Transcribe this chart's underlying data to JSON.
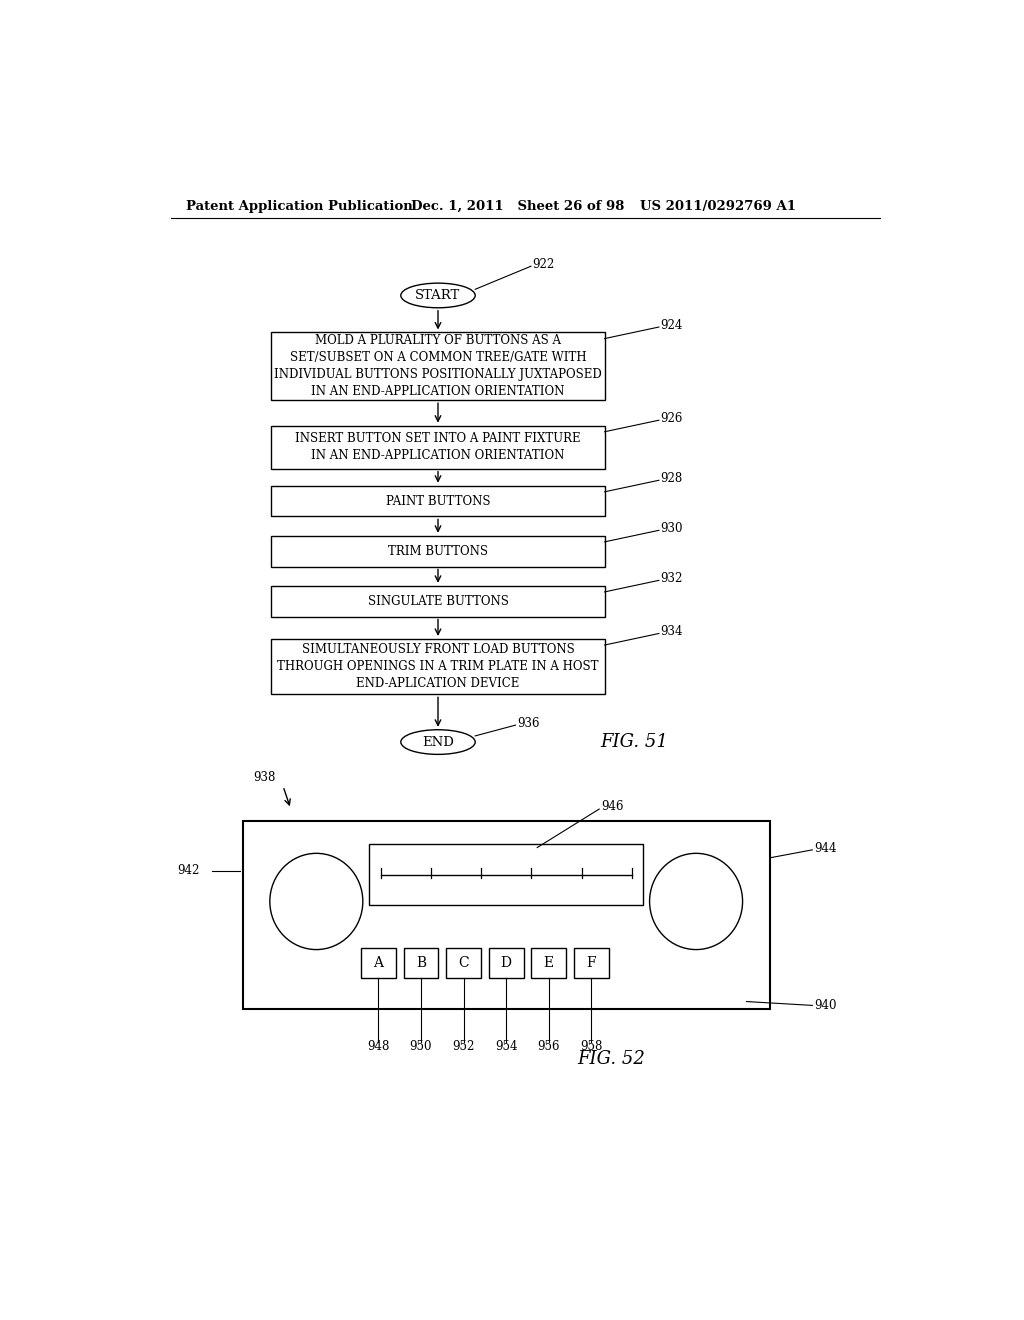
{
  "bg_color": "#ffffff",
  "header_left": "Patent Application Publication",
  "header_mid": "Dec. 1, 2011   Sheet 26 of 98",
  "header_right": "US 2011/0292769 A1",
  "flowchart": {
    "start_label": "START",
    "start_ref": "922",
    "boxes": [
      {
        "ref": "924",
        "text": "MOLD A PLURALITY OF BUTTONS AS A\nSET/SUBSET ON A COMMON TREE/GATE WITH\nINDIVIDUAL BUTTONS POSITIONALLY JUXTAPOSED\nIN AN END-APPLICATION ORIENTATION"
      },
      {
        "ref": "926",
        "text": "INSERT BUTTON SET INTO A PAINT FIXTURE\nIN AN END-APPLICATION ORIENTATION"
      },
      {
        "ref": "928",
        "text": "PAINT BUTTONS"
      },
      {
        "ref": "930",
        "text": "TRIM BUTTONS"
      },
      {
        "ref": "932",
        "text": "SINGULATE BUTTONS"
      },
      {
        "ref": "934",
        "text": "SIMULTANEOUSLY FRONT LOAD BUTTONS\nTHROUGH OPENINGS IN A TRIM PLATE IN A HOST\nEND-APLICATION DEVICE"
      }
    ],
    "end_label": "END",
    "end_ref": "936"
  },
  "fig51_label": "FIG. 51",
  "fig52_label": "FIG. 52",
  "radio": {
    "outer_box_ref": "940",
    "left_knob_ref": "942",
    "right_knob_ref": "944",
    "display_ref": "946",
    "arrow_ref": "938",
    "buttons": [
      "A",
      "B",
      "C",
      "D",
      "E",
      "F"
    ],
    "button_refs": [
      "948",
      "950",
      "952",
      "954",
      "956",
      "958"
    ]
  }
}
